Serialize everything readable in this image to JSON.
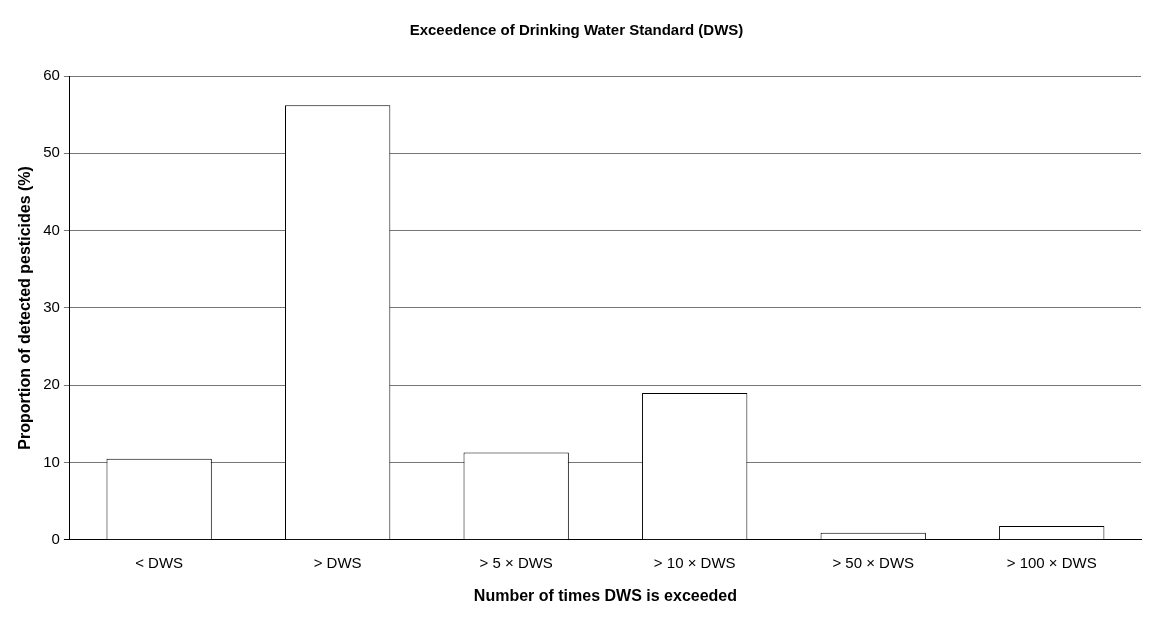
{
  "chart_data": {
    "type": "bar",
    "title": "Exceedence of Drinking Water Standard (DWS)",
    "xlabel": "Number of times DWS is exceeded",
    "ylabel": "Proportion of detected pesticides (%)",
    "categories": [
      "< DWS",
      "> DWS",
      "> 5 × DWS",
      "> 10 × DWS",
      "> 50 × DWS",
      "> 100 × DWS"
    ],
    "values": [
      10.5,
      56.2,
      11.3,
      19.0,
      0.9,
      1.8
    ],
    "color": "#ffffff",
    "ylim": [
      0,
      60
    ],
    "yticks": [
      0,
      10,
      20,
      30,
      40,
      50,
      60
    ],
    "grid": "y",
    "legend": false
  }
}
